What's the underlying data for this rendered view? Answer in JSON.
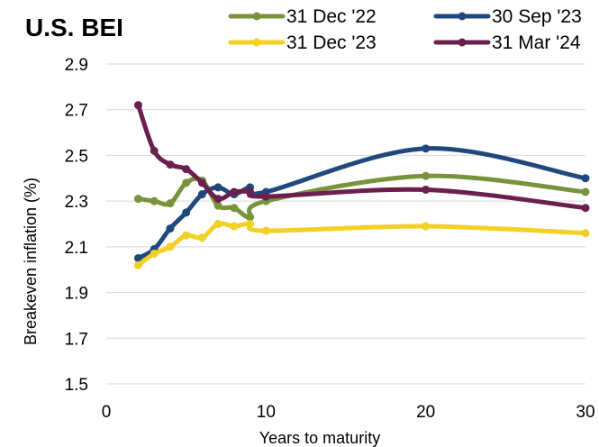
{
  "chart_data": {
    "type": "line",
    "title": "U.S. BEI",
    "xlabel": "Years to maturity",
    "ylabel": "Breakeven inflation (%)",
    "xlim": [
      0,
      30
    ],
    "ylim": [
      1.5,
      2.9
    ],
    "xticks": [
      "0",
      "10",
      "20",
      "30"
    ],
    "xtick_values": [
      0,
      10,
      20,
      30
    ],
    "yticks": [
      "1.5",
      "1.7",
      "1.9",
      "2.1",
      "2.3",
      "2.5",
      "2.7",
      "2.9"
    ],
    "ytick_values": [
      1.5,
      1.7,
      1.9,
      2.1,
      2.3,
      2.5,
      2.7,
      2.9
    ],
    "grid": "horizontal",
    "legend_position": "top",
    "series": [
      {
        "name": "31 Dec '22",
        "color": "#77933c",
        "points": [
          [
            2,
            2.31
          ],
          [
            3,
            2.3
          ],
          [
            4,
            2.29
          ],
          [
            5,
            2.38
          ],
          [
            6,
            2.39
          ],
          [
            7,
            2.28
          ],
          [
            8,
            2.27
          ],
          [
            9,
            2.23
          ],
          [
            10,
            2.3
          ],
          [
            20,
            2.41
          ],
          [
            30,
            2.34
          ]
        ]
      },
      {
        "name": "30 Sep '23",
        "color": "#1f497d",
        "points": [
          [
            2,
            2.05
          ],
          [
            3,
            2.09
          ],
          [
            4,
            2.18
          ],
          [
            5,
            2.25
          ],
          [
            6,
            2.33
          ],
          [
            7,
            2.36
          ],
          [
            8,
            2.33
          ],
          [
            9,
            2.36
          ],
          [
            10,
            2.34
          ],
          [
            20,
            2.53
          ],
          [
            30,
            2.4
          ]
        ]
      },
      {
        "name": "31 Dec '23",
        "color": "#f2d025",
        "points": [
          [
            2,
            2.02
          ],
          [
            3,
            2.07
          ],
          [
            4,
            2.1
          ],
          [
            5,
            2.15
          ],
          [
            6,
            2.14
          ],
          [
            7,
            2.2
          ],
          [
            8,
            2.19
          ],
          [
            9,
            2.2
          ],
          [
            10,
            2.17
          ],
          [
            20,
            2.19
          ],
          [
            30,
            2.16
          ]
        ]
      },
      {
        "name": "31 Mar '24",
        "color": "#6b1f4f",
        "points": [
          [
            2,
            2.72
          ],
          [
            3,
            2.52
          ],
          [
            4,
            2.46
          ],
          [
            5,
            2.44
          ],
          [
            6,
            2.38
          ],
          [
            7,
            2.31
          ],
          [
            8,
            2.34
          ],
          [
            9,
            2.34
          ],
          [
            10,
            2.32
          ],
          [
            20,
            2.35
          ],
          [
            30,
            2.27
          ]
        ]
      }
    ]
  }
}
